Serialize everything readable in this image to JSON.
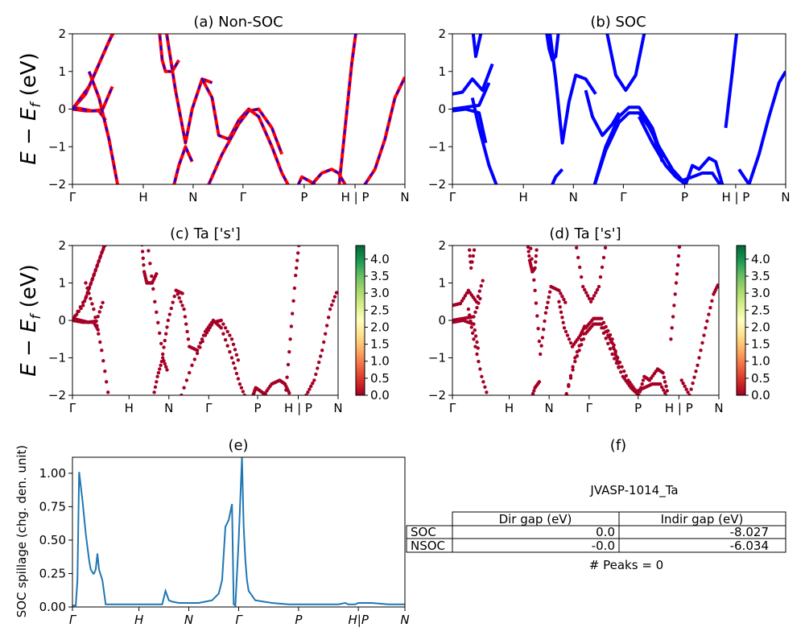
{
  "ylabel_main": "E − E",
  "ylabel_main_sub": "f",
  "ylabel_main_unit": " (eV)",
  "kpath_labels": [
    "Γ",
    "H",
    "N",
    "Γ",
    "P",
    "H | P",
    "N"
  ],
  "spill_kpath_labels": [
    "Γ",
    "H",
    "N",
    "Γ",
    "P",
    "H|P",
    "N"
  ],
  "colormap_colors": [
    "#a50026",
    "#d73027",
    "#f46d43",
    "#fdae61",
    "#fee08b",
    "#ffffbf",
    "#d9ef8b",
    "#a6d96a",
    "#66bd63",
    "#1a9850",
    "#006837"
  ],
  "colors": {
    "nonsoc_solid": "#ff0000",
    "nonsoc_dash": "#0000ff",
    "soc": "#0000ff",
    "scatter": "#a50026",
    "spillage": "#1f77b4"
  },
  "chart_data": [
    {
      "id": "a",
      "type": "line",
      "title": "(a) Non-SOC",
      "ylim": [
        -2,
        2
      ],
      "yticks": [
        -2,
        -1,
        0,
        1,
        2
      ],
      "x_ticks": [
        0.0,
        0.213,
        0.363,
        0.513,
        0.697,
        0.85,
        1.0
      ],
      "series": [
        {
          "x": [
            0,
            0.04,
            0.07,
            0.1,
            0.13
          ],
          "y": [
            0,
            0.4,
            1.0,
            1.6,
            2.2
          ]
        },
        {
          "x": [
            0,
            0.05,
            0.08,
            0.11,
            0.14
          ],
          "y": [
            0,
            0.6,
            1.2,
            1.8,
            2.3
          ]
        },
        {
          "x": [
            0,
            0.04,
            0.08,
            0.1
          ],
          "y": [
            0,
            -0.05,
            -0.05,
            -0.3
          ]
        },
        {
          "x": [
            0,
            0.03,
            0.06,
            0.09,
            0.12
          ],
          "y": [
            0.05,
            0.0,
            -0.05,
            -0.02,
            0.6
          ]
        },
        {
          "x": [
            0.05,
            0.08,
            0.11,
            0.14
          ],
          "y": [
            1.0,
            0.3,
            -0.8,
            -2.2
          ]
        },
        {
          "x": [
            0.26,
            0.27,
            0.28,
            0.3,
            0.32
          ],
          "y": [
            2.2,
            1.3,
            1.0,
            1.0,
            1.3
          ]
        },
        {
          "x": [
            0.28,
            0.31,
            0.34,
            0.36,
            0.39,
            0.42
          ],
          "y": [
            2.2,
            0.5,
            -0.9,
            0.0,
            0.8,
            0.7
          ]
        },
        {
          "x": [
            0.39,
            0.42,
            0.44,
            0.47,
            0.5,
            0.53,
            0.56,
            0.6,
            0.63,
            0.66
          ],
          "y": [
            0.8,
            0.3,
            -0.7,
            -0.8,
            -0.3,
            0.0,
            -0.2,
            -1.0,
            -1.7,
            -2.2
          ]
        },
        {
          "x": [
            0.4,
            0.45,
            0.5,
            0.53,
            0.56,
            0.6,
            0.63
          ],
          "y": [
            -2.2,
            -1.2,
            -0.4,
            -0.05,
            0.0,
            -0.5,
            -1.2
          ]
        },
        {
          "x": [
            0.3,
            0.32,
            0.34,
            0.36
          ],
          "y": [
            -2.2,
            -1.5,
            -1.0,
            -1.4
          ]
        },
        {
          "x": [
            0.68,
            0.69,
            0.71,
            0.73
          ],
          "y": [
            -2.0,
            -1.8,
            -1.9,
            -2.0
          ]
        },
        {
          "x": [
            0.72,
            0.75,
            0.78,
            0.8,
            0.82
          ],
          "y": [
            -2.0,
            -1.7,
            -1.6,
            -1.7,
            -2.0
          ]
        },
        {
          "x": [
            0.8,
            0.82,
            0.84,
            0.855
          ],
          "y": [
            -2.2,
            -0.5,
            1.2,
            2.2
          ]
        },
        {
          "x": [
            0.88,
            0.91,
            0.94,
            0.97,
            1.0
          ],
          "y": [
            -2.0,
            -1.6,
            -0.8,
            0.3,
            0.85
          ]
        },
        {
          "x": [
            0.85,
            0.87,
            0.88
          ],
          "y": [
            -2.2,
            -2.1,
            -2.0
          ]
        }
      ]
    },
    {
      "id": "b",
      "type": "line",
      "title": "(b) SOC",
      "ylim": [
        -2,
        2
      ],
      "yticks": [
        -2,
        -1,
        0,
        1,
        2
      ],
      "x_ticks": [
        0.0,
        0.213,
        0.363,
        0.513,
        0.697,
        0.85,
        1.0
      ],
      "series": [
        {
          "x": [
            0,
            0.03,
            0.06,
            0.09,
            0.12
          ],
          "y": [
            0.4,
            0.45,
            0.8,
            0.5,
            1.2
          ]
        },
        {
          "x": [
            0,
            0.04,
            0.08,
            0.11
          ],
          "y": [
            0.0,
            0.05,
            0.1,
            0.7
          ]
        },
        {
          "x": [
            0,
            0.04,
            0.08,
            0.1
          ],
          "y": [
            -0.05,
            0.0,
            -0.1,
            -0.9
          ]
        },
        {
          "x": [
            0.06,
            0.08,
            0.11,
            0.14
          ],
          "y": [
            0.3,
            -0.5,
            -1.5,
            -2.2
          ]
        },
        {
          "x": [
            0.06,
            0.07,
            0.09
          ],
          "y": [
            2.2,
            1.4,
            2.2
          ]
        },
        {
          "x": [
            0.28,
            0.29,
            0.3,
            0.31,
            0.32
          ],
          "y": [
            2.2,
            1.6,
            1.3,
            1.4,
            2.2
          ]
        },
        {
          "x": [
            0.29,
            0.31,
            0.33,
            0.35,
            0.37,
            0.4,
            0.43
          ],
          "y": [
            2.2,
            0.8,
            -0.9,
            0.2,
            0.9,
            0.8,
            0.4
          ]
        },
        {
          "x": [
            0.4,
            0.42,
            0.45,
            0.48,
            0.5
          ],
          "y": [
            0.5,
            -0.2,
            -0.7,
            -0.4,
            -0.1
          ]
        },
        {
          "x": [
            0.29,
            0.31,
            0.33
          ],
          "y": [
            -2.2,
            -1.8,
            -1.6
          ]
        },
        {
          "x": [
            0.46,
            0.49,
            0.52,
            0.55,
            0.58
          ],
          "y": [
            2.2,
            0.9,
            0.5,
            0.9,
            2.2
          ]
        },
        {
          "x": [
            0.42,
            0.46,
            0.5,
            0.53,
            0.56,
            0.6,
            0.63
          ],
          "y": [
            -2.2,
            -1.0,
            -0.2,
            0.05,
            0.05,
            -0.5,
            -1.3
          ]
        },
        {
          "x": [
            0.42,
            0.46,
            0.5,
            0.53,
            0.56,
            0.6,
            0.63
          ],
          "y": [
            -2.2,
            -1.1,
            -0.35,
            -0.1,
            -0.1,
            -0.6,
            -1.4
          ]
        },
        {
          "x": [
            0.56,
            0.6,
            0.64,
            0.67,
            0.7,
            0.72,
            0.74,
            0.77,
            0.79,
            0.81
          ],
          "y": [
            -0.2,
            -0.9,
            -1.5,
            -1.8,
            -2.0,
            -1.5,
            -1.6,
            -1.3,
            -1.4,
            -2.0
          ]
        },
        {
          "x": [
            0.58,
            0.62,
            0.66,
            0.69,
            0.72,
            0.75,
            0.78,
            0.81
          ],
          "y": [
            -0.3,
            -1.0,
            -1.6,
            -1.9,
            -1.8,
            -1.7,
            -1.7,
            -2.1
          ]
        },
        {
          "x": [
            0.82,
            0.84,
            0.855
          ],
          "y": [
            -0.5,
            1.0,
            2.2
          ]
        },
        {
          "x": [
            0.86,
            0.89,
            0.92,
            0.95,
            0.98,
            1.0
          ],
          "y": [
            -1.6,
            -2.0,
            -1.2,
            -0.2,
            0.7,
            1.0
          ]
        }
      ]
    },
    {
      "id": "c",
      "type": "scatter",
      "title": "(c)  Ta ['s']",
      "ylim": [
        -2,
        2
      ],
      "yticks": [
        -2,
        -1,
        0,
        1,
        2
      ],
      "x_ticks": [
        0.0,
        0.213,
        0.363,
        0.513,
        0.697,
        0.85,
        1.0
      ],
      "colorbar": {
        "min": 0.0,
        "max": 4.4,
        "ticks": [
          0.0,
          0.5,
          1.0,
          1.5,
          2.0,
          2.5,
          3.0,
          3.5,
          4.0
        ]
      }
    },
    {
      "id": "d",
      "type": "scatter",
      "title": "(d) Ta ['s']",
      "ylim": [
        -2,
        2
      ],
      "yticks": [
        -2,
        -1,
        0,
        1,
        2
      ],
      "x_ticks": [
        0.0,
        0.213,
        0.363,
        0.513,
        0.697,
        0.85,
        1.0
      ],
      "colorbar": {
        "min": 0.0,
        "max": 4.4,
        "ticks": [
          0.0,
          0.5,
          1.0,
          1.5,
          2.0,
          2.5,
          3.0,
          3.5,
          4.0
        ]
      }
    },
    {
      "id": "e",
      "type": "line",
      "title": "(e)",
      "ylabel": "SOC spillage (chg. den. unit)",
      "ylim": [
        0,
        1.12
      ],
      "yticks": [
        0.0,
        0.25,
        0.5,
        0.75,
        1.0
      ],
      "ytick_labels": [
        "0.00",
        "0.25",
        "0.50",
        "0.75",
        "1.00"
      ],
      "x_ticks": [
        0.0,
        0.2,
        0.35,
        0.5,
        0.68,
        0.86,
        1.0
      ],
      "x": [
        0,
        0.01,
        0.015,
        0.02,
        0.03,
        0.04,
        0.05,
        0.055,
        0.06,
        0.062,
        0.065,
        0.07,
        0.075,
        0.08,
        0.09,
        0.1,
        0.12,
        0.15,
        0.18,
        0.2,
        0.24,
        0.27,
        0.28,
        0.29,
        0.3,
        0.32,
        0.34,
        0.36,
        0.38,
        0.4,
        0.42,
        0.44,
        0.45,
        0.46,
        0.47,
        0.48,
        0.485,
        0.49,
        0.5,
        0.51,
        0.515,
        0.52,
        0.525,
        0.53,
        0.55,
        0.6,
        0.65,
        0.7,
        0.75,
        0.8,
        0.82,
        0.83,
        0.84,
        0.85,
        0.86,
        0.9,
        0.95,
        1.0
      ],
      "y": [
        0.01,
        0.01,
        0.2,
        1.01,
        0.8,
        0.55,
        0.35,
        0.28,
        0.26,
        0.25,
        0.25,
        0.28,
        0.4,
        0.28,
        0.2,
        0.02,
        0.02,
        0.02,
        0.02,
        0.02,
        0.02,
        0.02,
        0.12,
        0.05,
        0.04,
        0.03,
        0.03,
        0.03,
        0.03,
        0.04,
        0.05,
        0.1,
        0.2,
        0.6,
        0.65,
        0.77,
        0.02,
        0.01,
        0.5,
        1.12,
        0.6,
        0.35,
        0.2,
        0.12,
        0.05,
        0.03,
        0.02,
        0.02,
        0.02,
        0.02,
        0.03,
        0.02,
        0.02,
        0.02,
        0.03,
        0.03,
        0.02,
        0.02
      ]
    }
  ],
  "table_panel": {
    "title": "(f)",
    "subtitle": "JVASP-1014_Ta",
    "col_headers": [
      "Dir gap (eV)",
      "Indir gap (eV)"
    ],
    "rows": [
      {
        "label": "SOC",
        "dir": "0.0",
        "indir": "-8.027"
      },
      {
        "label": "NSOC",
        "dir": "-0.0",
        "indir": "-6.034"
      }
    ],
    "peaks": "# Peaks = 0"
  }
}
